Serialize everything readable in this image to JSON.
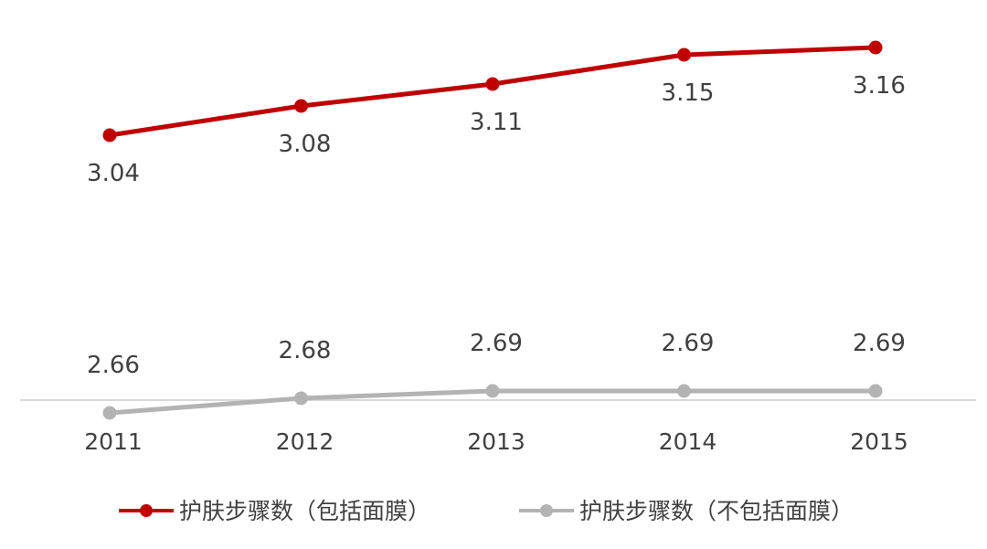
{
  "chart_data": {
    "type": "line",
    "categories": [
      "2011",
      "2012",
      "2013",
      "2014",
      "2015"
    ],
    "series": [
      {
        "name": "护肤步骤数（包括面膜）",
        "values": [
          3.04,
          3.08,
          3.11,
          3.15,
          3.16
        ],
        "labels": [
          "3.04",
          "3.08",
          "3.11",
          "3.15",
          "3.16"
        ],
        "color": "#c00000"
      },
      {
        "name": "护肤步骤数（不包括面膜）",
        "values": [
          2.66,
          2.68,
          2.69,
          2.69,
          2.69
        ],
        "labels": [
          "2.66",
          "2.68",
          "2.69",
          "2.69",
          "2.69"
        ],
        "color": "#b3b3b3"
      }
    ],
    "title": "",
    "xlabel": "",
    "ylabel": "",
    "grid": false,
    "legend": "bottom",
    "axis_color": "#d9d9d9"
  }
}
